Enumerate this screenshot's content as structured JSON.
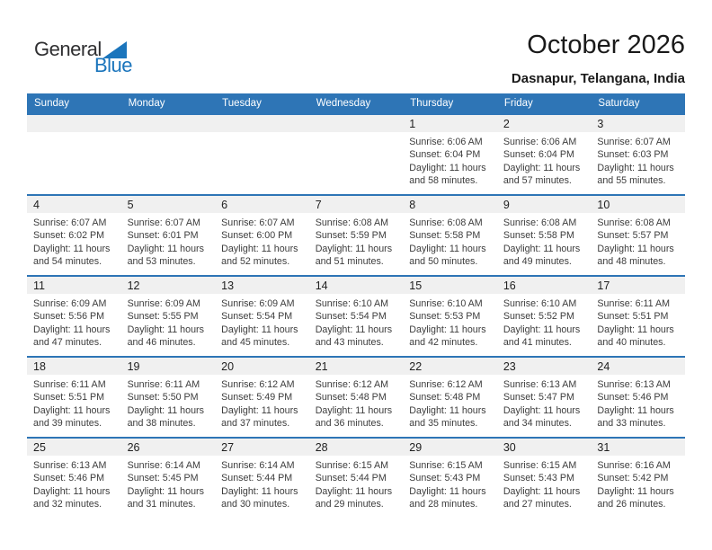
{
  "logo": {
    "general": "General",
    "blue": "Blue"
  },
  "header": {
    "title": "October 2026",
    "location": "Dasnapur, Telangana, India"
  },
  "colors": {
    "header_blue": "#2e75b6",
    "week_divider_blue": "#2e75b6",
    "day_band_gray": "#f0f0f0",
    "logo_blue": "#1b75bc"
  },
  "calendar": {
    "day_headers": [
      "Sunday",
      "Monday",
      "Tuesday",
      "Wednesday",
      "Thursday",
      "Friday",
      "Saturday"
    ],
    "weeks": [
      [
        null,
        null,
        null,
        null,
        {
          "day": "1",
          "sunrise": "Sunrise: 6:06 AM",
          "sunset": "Sunset: 6:04 PM",
          "daylight": "Daylight: 11 hours and 58 minutes."
        },
        {
          "day": "2",
          "sunrise": "Sunrise: 6:06 AM",
          "sunset": "Sunset: 6:04 PM",
          "daylight": "Daylight: 11 hours and 57 minutes."
        },
        {
          "day": "3",
          "sunrise": "Sunrise: 6:07 AM",
          "sunset": "Sunset: 6:03 PM",
          "daylight": "Daylight: 11 hours and 55 minutes."
        }
      ],
      [
        {
          "day": "4",
          "sunrise": "Sunrise: 6:07 AM",
          "sunset": "Sunset: 6:02 PM",
          "daylight": "Daylight: 11 hours and 54 minutes."
        },
        {
          "day": "5",
          "sunrise": "Sunrise: 6:07 AM",
          "sunset": "Sunset: 6:01 PM",
          "daylight": "Daylight: 11 hours and 53 minutes."
        },
        {
          "day": "6",
          "sunrise": "Sunrise: 6:07 AM",
          "sunset": "Sunset: 6:00 PM",
          "daylight": "Daylight: 11 hours and 52 minutes."
        },
        {
          "day": "7",
          "sunrise": "Sunrise: 6:08 AM",
          "sunset": "Sunset: 5:59 PM",
          "daylight": "Daylight: 11 hours and 51 minutes."
        },
        {
          "day": "8",
          "sunrise": "Sunrise: 6:08 AM",
          "sunset": "Sunset: 5:58 PM",
          "daylight": "Daylight: 11 hours and 50 minutes."
        },
        {
          "day": "9",
          "sunrise": "Sunrise: 6:08 AM",
          "sunset": "Sunset: 5:58 PM",
          "daylight": "Daylight: 11 hours and 49 minutes."
        },
        {
          "day": "10",
          "sunrise": "Sunrise: 6:08 AM",
          "sunset": "Sunset: 5:57 PM",
          "daylight": "Daylight: 11 hours and 48 minutes."
        }
      ],
      [
        {
          "day": "11",
          "sunrise": "Sunrise: 6:09 AM",
          "sunset": "Sunset: 5:56 PM",
          "daylight": "Daylight: 11 hours and 47 minutes."
        },
        {
          "day": "12",
          "sunrise": "Sunrise: 6:09 AM",
          "sunset": "Sunset: 5:55 PM",
          "daylight": "Daylight: 11 hours and 46 minutes."
        },
        {
          "day": "13",
          "sunrise": "Sunrise: 6:09 AM",
          "sunset": "Sunset: 5:54 PM",
          "daylight": "Daylight: 11 hours and 45 minutes."
        },
        {
          "day": "14",
          "sunrise": "Sunrise: 6:10 AM",
          "sunset": "Sunset: 5:54 PM",
          "daylight": "Daylight: 11 hours and 43 minutes."
        },
        {
          "day": "15",
          "sunrise": "Sunrise: 6:10 AM",
          "sunset": "Sunset: 5:53 PM",
          "daylight": "Daylight: 11 hours and 42 minutes."
        },
        {
          "day": "16",
          "sunrise": "Sunrise: 6:10 AM",
          "sunset": "Sunset: 5:52 PM",
          "daylight": "Daylight: 11 hours and 41 minutes."
        },
        {
          "day": "17",
          "sunrise": "Sunrise: 6:11 AM",
          "sunset": "Sunset: 5:51 PM",
          "daylight": "Daylight: 11 hours and 40 minutes."
        }
      ],
      [
        {
          "day": "18",
          "sunrise": "Sunrise: 6:11 AM",
          "sunset": "Sunset: 5:51 PM",
          "daylight": "Daylight: 11 hours and 39 minutes."
        },
        {
          "day": "19",
          "sunrise": "Sunrise: 6:11 AM",
          "sunset": "Sunset: 5:50 PM",
          "daylight": "Daylight: 11 hours and 38 minutes."
        },
        {
          "day": "20",
          "sunrise": "Sunrise: 6:12 AM",
          "sunset": "Sunset: 5:49 PM",
          "daylight": "Daylight: 11 hours and 37 minutes."
        },
        {
          "day": "21",
          "sunrise": "Sunrise: 6:12 AM",
          "sunset": "Sunset: 5:48 PM",
          "daylight": "Daylight: 11 hours and 36 minutes."
        },
        {
          "day": "22",
          "sunrise": "Sunrise: 6:12 AM",
          "sunset": "Sunset: 5:48 PM",
          "daylight": "Daylight: 11 hours and 35 minutes."
        },
        {
          "day": "23",
          "sunrise": "Sunrise: 6:13 AM",
          "sunset": "Sunset: 5:47 PM",
          "daylight": "Daylight: 11 hours and 34 minutes."
        },
        {
          "day": "24",
          "sunrise": "Sunrise: 6:13 AM",
          "sunset": "Sunset: 5:46 PM",
          "daylight": "Daylight: 11 hours and 33 minutes."
        }
      ],
      [
        {
          "day": "25",
          "sunrise": "Sunrise: 6:13 AM",
          "sunset": "Sunset: 5:46 PM",
          "daylight": "Daylight: 11 hours and 32 minutes."
        },
        {
          "day": "26",
          "sunrise": "Sunrise: 6:14 AM",
          "sunset": "Sunset: 5:45 PM",
          "daylight": "Daylight: 11 hours and 31 minutes."
        },
        {
          "day": "27",
          "sunrise": "Sunrise: 6:14 AM",
          "sunset": "Sunset: 5:44 PM",
          "daylight": "Daylight: 11 hours and 30 minutes."
        },
        {
          "day": "28",
          "sunrise": "Sunrise: 6:15 AM",
          "sunset": "Sunset: 5:44 PM",
          "daylight": "Daylight: 11 hours and 29 minutes."
        },
        {
          "day": "29",
          "sunrise": "Sunrise: 6:15 AM",
          "sunset": "Sunset: 5:43 PM",
          "daylight": "Daylight: 11 hours and 28 minutes."
        },
        {
          "day": "30",
          "sunrise": "Sunrise: 6:15 AM",
          "sunset": "Sunset: 5:43 PM",
          "daylight": "Daylight: 11 hours and 27 minutes."
        },
        {
          "day": "31",
          "sunrise": "Sunrise: 6:16 AM",
          "sunset": "Sunset: 5:42 PM",
          "daylight": "Daylight: 11 hours and 26 minutes."
        }
      ]
    ]
  }
}
